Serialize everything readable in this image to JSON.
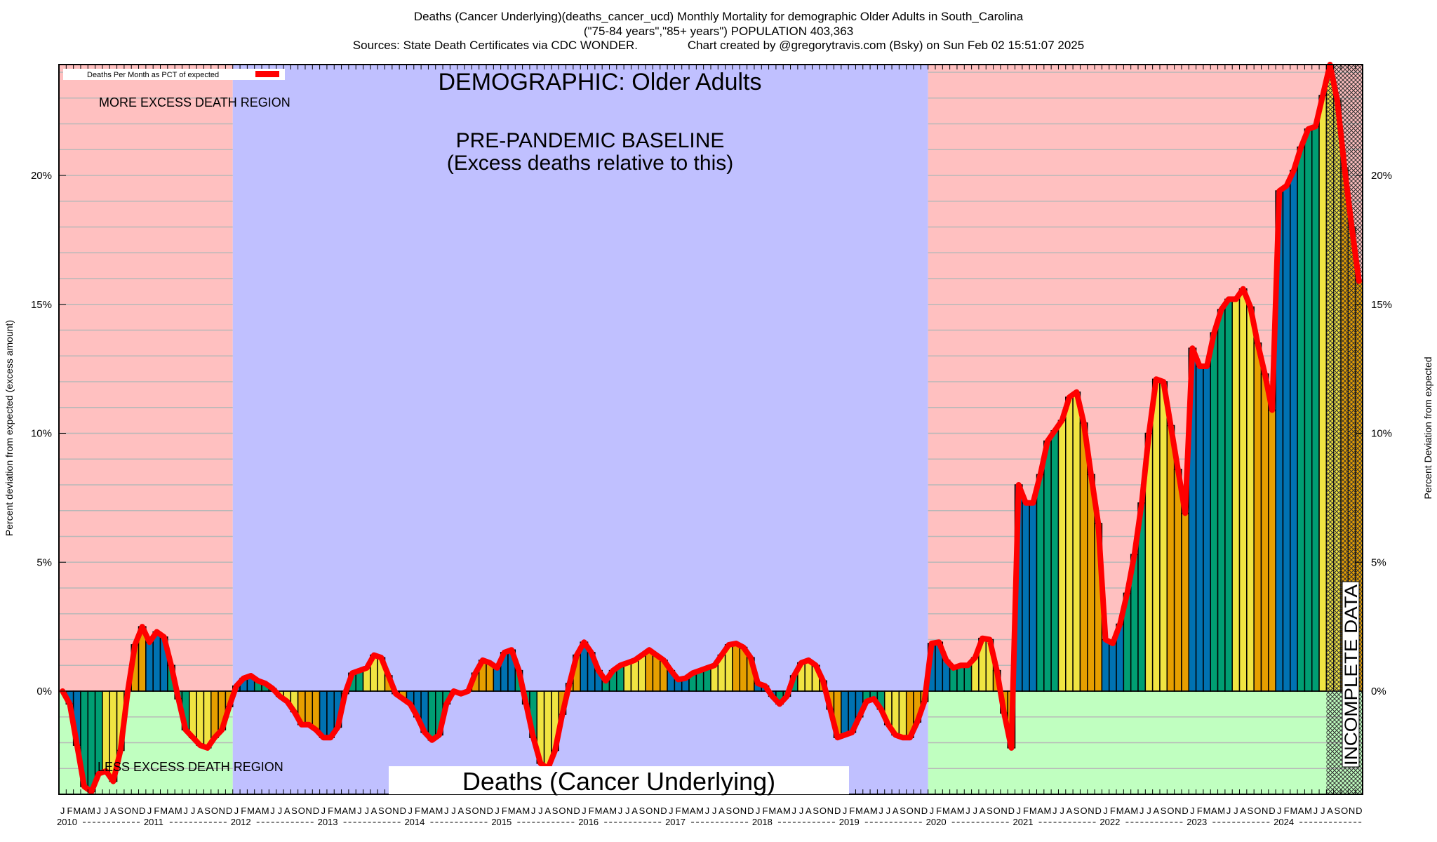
{
  "header": {
    "line1": "Deaths (Cancer Underlying)(deaths_cancer_ucd) Monthly Mortality for demographic Older Adults in South_Carolina",
    "line2": "(\"75-84 years\",\"85+ years\") POPULATION 403,363",
    "line3": "Sources: State Death Certificates via CDC WONDER.               Chart created by @gregorytravis.com (Bsky) on Sun Feb 02 15:51:07 2025"
  },
  "annotations": {
    "demographic": "DEMOGRAPHIC: Older Adults",
    "baseline_1": "PRE-PANDEMIC BASELINE",
    "baseline_2": "(Excess deaths relative to this)",
    "more_region": "MORE EXCESS DEATH REGION",
    "less_region": "LESS EXCESS DEATH REGION",
    "cause_box": "Deaths (Cancer Underlying)",
    "incomplete": "INCOMPLETE DATA"
  },
  "colors": {
    "excess_bg": "#ffc0c0",
    "deficit_bg": "#c0ffc0",
    "baseline_bg": "#c0c0ff",
    "q1": "#0072b2",
    "q2": "#009e73",
    "q3": "#f0e442",
    "q4": "#e69f00",
    "line": "#ff0000"
  },
  "chart_data": {
    "type": "bar",
    "title": "Deaths (Cancer Underlying)(deaths_cancer_ucd) Monthly Mortality for demographic Older Adults in South_Carolina",
    "ylabel": "Percent deviation from expected (excess amount)",
    "ylabel_right": "Percent Deviation from expected",
    "ylim": [
      -4.0,
      24.3
    ],
    "yticks": [
      0,
      5,
      10,
      15,
      20
    ],
    "ytick_labels": [
      "0%",
      "5%",
      "10%",
      "15%",
      "20%"
    ],
    "grid": true,
    "grid_step": 1,
    "legend": {
      "label": "Deaths Per Month as PCT of expected",
      "placement": "top-left"
    },
    "month_letters": [
      "J",
      "F",
      "M",
      "A",
      "M",
      "J",
      "J",
      "A",
      "S",
      "O",
      "N",
      "D"
    ],
    "years": [
      "2010",
      "2011",
      "2012",
      "2013",
      "2014",
      "2015",
      "2016",
      "2017",
      "2018",
      "2019",
      "2020",
      "2021",
      "2022",
      "2023",
      "2024"
    ],
    "baseline_years": [
      "2012",
      "2019"
    ],
    "incomplete_from_month_index": 175,
    "values": [
      0,
      -0.5,
      -2.1,
      -3.7,
      -3.9,
      -3.2,
      -3.1,
      -3.5,
      -2.3,
      0,
      1.8,
      2.5,
      1.9,
      2.3,
      2.1,
      1.0,
      -0.3,
      -1.5,
      -1.8,
      -2.1,
      -2.2,
      -1.8,
      -1.5,
      -0.6,
      0.2,
      0.5,
      0.6,
      0.4,
      0.3,
      0.1,
      -0.2,
      -0.4,
      -0.8,
      -1.3,
      -1.3,
      -1.5,
      -1.8,
      -1.8,
      -1.4,
      -0.1,
      0.7,
      0.8,
      0.9,
      1.4,
      1.3,
      0.6,
      -0.1,
      -0.3,
      -0.5,
      -1.0,
      -1.6,
      -1.9,
      -1.7,
      -0.5,
      0,
      -0.1,
      0,
      0.7,
      1.2,
      1.1,
      0.9,
      1.5,
      1.6,
      0.8,
      -0.5,
      -1.8,
      -2.8,
      -3.0,
      -2.3,
      -0.9,
      0.3,
      1.4,
      1.9,
      1.5,
      0.8,
      0.4,
      0.8,
      1.0,
      1.1,
      1.2,
      1.4,
      1.6,
      1.4,
      1.2,
      0.8,
      0.45,
      0.5,
      0.7,
      0.8,
      0.9,
      1.0,
      1.4,
      1.8,
      1.85,
      1.7,
      1.3,
      0.3,
      0.2,
      -0.2,
      -0.5,
      -0.2,
      0.6,
      1.1,
      1.2,
      1.0,
      0.4,
      -0.7,
      -1.8,
      -1.7,
      -1.6,
      -1.0,
      -0.4,
      -0.3,
      -0.7,
      -1.3,
      -1.7,
      -1.8,
      -1.8,
      -1.2,
      -0.4,
      1.85,
      1.9,
      1.2,
      0.9,
      1.0,
      1.0,
      1.3,
      2.05,
      2.0,
      0.8,
      -0.85,
      -2.2,
      8.0,
      7.3,
      7.3,
      8.4,
      9.7,
      10.1,
      10.5,
      11.4,
      11.6,
      10.4,
      8.4,
      6.5,
      2.0,
      1.85,
      2.6,
      3.8,
      5.3,
      7.3,
      10.0,
      12.1,
      12.0,
      10.3,
      8.6,
      6.9,
      13.3,
      12.6,
      12.6,
      13.9,
      14.8,
      15.2,
      15.2,
      15.6,
      14.9,
      13.5,
      12.3,
      10.9,
      19.4,
      19.6,
      20.2,
      21.1,
      21.8,
      21.9,
      23.1,
      24.3,
      22.9,
      20.3,
      18.0,
      15.9
    ]
  }
}
